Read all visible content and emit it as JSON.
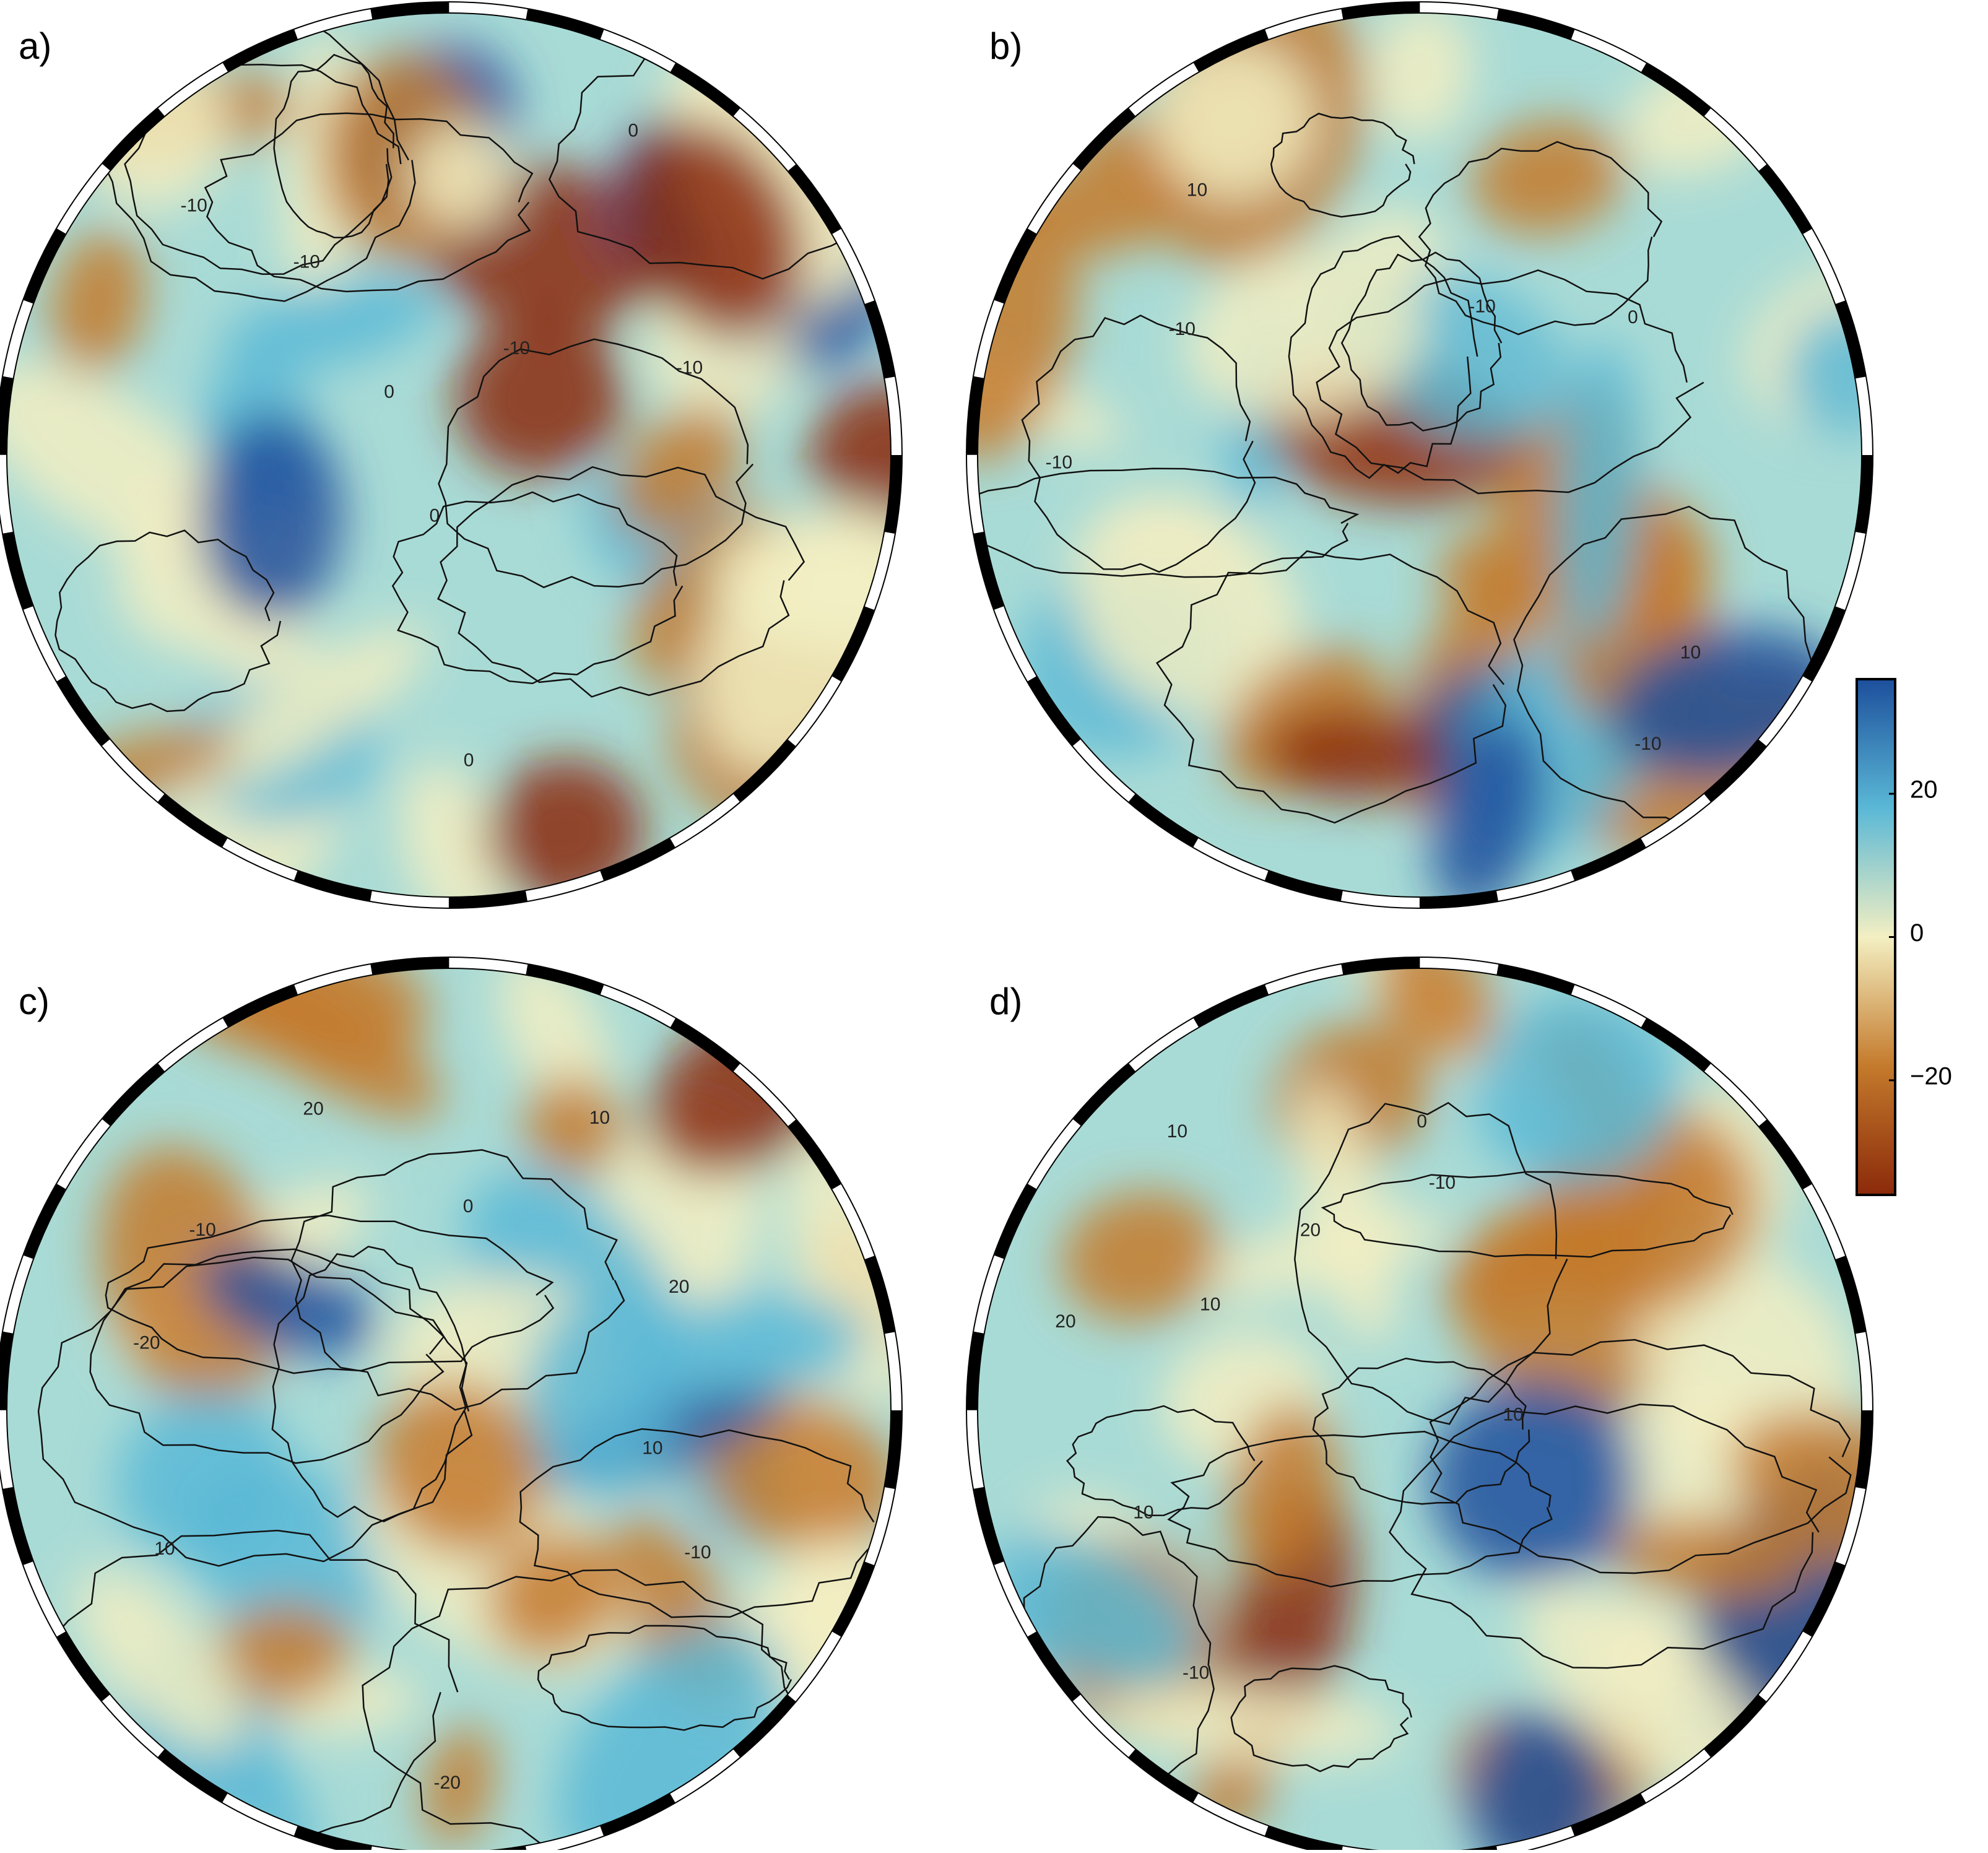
{
  "panels": [
    {
      "label": "a)",
      "contour_labels": [
        "-10",
        "-10",
        "0",
        "-10",
        "0",
        "0",
        "-10",
        "0"
      ]
    },
    {
      "label": "b)",
      "contour_labels": [
        "-10",
        "-10",
        "0",
        "-10",
        "10",
        "-10",
        "10"
      ]
    },
    {
      "label": "c)",
      "contour_labels": [
        "-10",
        "10",
        "20",
        "-10",
        "-20",
        "20",
        "10",
        "-20",
        "10",
        "0"
      ]
    },
    {
      "label": "d)",
      "contour_labels": [
        "10",
        "20",
        "0",
        "-10",
        "20",
        "10",
        "-10",
        "10",
        "10"
      ]
    }
  ],
  "colorbar": {
    "lim": [
      -36,
      36
    ],
    "ticks": [
      20,
      0,
      {
        "value": -20,
        "label": "−20"
      }
    ],
    "colors": [
      "#8b2a0a",
      "#c47a2c",
      "#f3efc2",
      "#5ab8d6",
      "#1d4f9c"
    ]
  }
}
